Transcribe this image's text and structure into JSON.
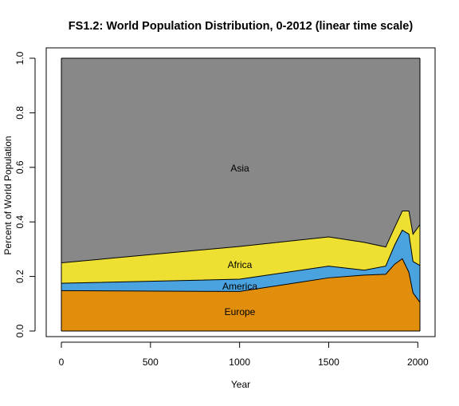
{
  "chart_data": {
    "type": "area",
    "stacked": true,
    "title": "FS1.2: World Population Distribution, 0-2012 (linear time scale)",
    "xlabel": "Year",
    "ylabel": "Percent of World Population",
    "xlim": [
      0,
      2012
    ],
    "ylim": [
      0,
      1
    ],
    "x_ticks": [
      "0",
      "500",
      "1000",
      "1500",
      "2000"
    ],
    "y_ticks": [
      "0.0",
      "0.2",
      "0.4",
      "0.6",
      "0.8",
      "1.0"
    ],
    "grid": false,
    "x": [
      0,
      1000,
      1500,
      1700,
      1820,
      1870,
      1913,
      1950,
      1973,
      2012
    ],
    "series": [
      {
        "name": "Europe",
        "color": "#e08e0b",
        "values": [
          0.148,
          0.145,
          0.195,
          0.205,
          0.208,
          0.245,
          0.265,
          0.215,
          0.14,
          0.105
        ]
      },
      {
        "name": "America",
        "color": "#4aa3df",
        "values": [
          0.027,
          0.045,
          0.043,
          0.018,
          0.03,
          0.07,
          0.105,
          0.14,
          0.115,
          0.135
        ]
      },
      {
        "name": "Africa",
        "color": "#ede033",
        "values": [
          0.075,
          0.12,
          0.107,
          0.102,
          0.07,
          0.065,
          0.07,
          0.085,
          0.1,
          0.15
        ]
      },
      {
        "name": "Asia",
        "color": "#888888",
        "values": [
          0.75,
          0.69,
          0.655,
          0.675,
          0.692,
          0.62,
          0.56,
          0.56,
          0.645,
          0.61
        ]
      }
    ],
    "labels": {
      "asia": "Asia",
      "africa": "Africa",
      "america": "America",
      "europe": "Europe"
    }
  }
}
